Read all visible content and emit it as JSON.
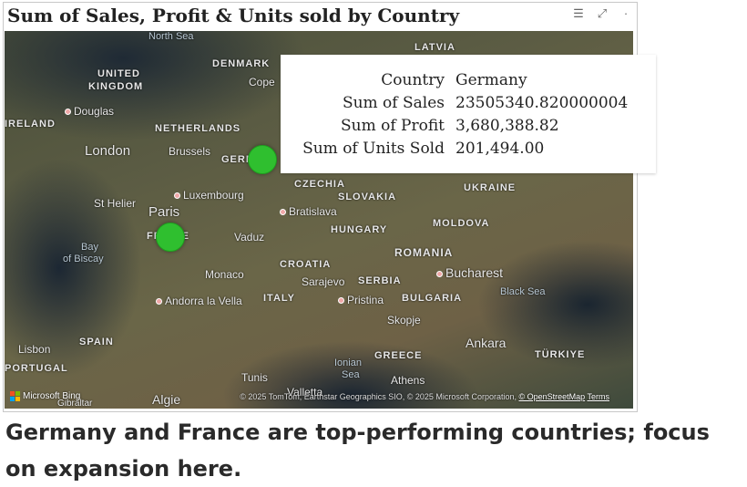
{
  "visual": {
    "title": "Sum of Sales, Profit & Units sold by Country",
    "header_icons": [
      "filter-icon",
      "focus-mode-icon",
      "more-options-icon"
    ]
  },
  "map": {
    "labels": {
      "north_sea": "North Sea",
      "latvia": "LATVIA",
      "denmark": "DENMARK",
      "copenhagen": "Cope",
      "united_kingdom_1": "UNITED",
      "united_kingdom_2": "KINGDOM",
      "douglas": "Douglas",
      "ireland": "IRELAND",
      "netherlands": "NETHERLANDS",
      "london": "London",
      "brussels": "Brussels",
      "germany_partial": "GERM",
      "luxembourg": "Luxembourg",
      "st_helier": "St Helier",
      "paris": "Paris",
      "france_partial": "FR NCE",
      "vaduz": "Vaduz",
      "bay_of_biscay_1": "Bay",
      "bay_of_biscay_2": "of Biscay",
      "monaco": "Monaco",
      "andorra": "Andorra la Vella",
      "italy": "ITALY",
      "spain": "SPAIN",
      "lisbon": "Lisbon",
      "portugal": "PORTUGAL",
      "tunis": "Tunis",
      "valletta": "Valletta",
      "algiers": "Algie",
      "gibraltar": "Gibraltar",
      "czechia": "CZECHIA",
      "slovakia": "SLOVAKIA",
      "bratislava": "Bratislava",
      "hungary": "HUNGARY",
      "ukraine": "UKRAINE",
      "moldova": "MOLDOVA",
      "romania": "ROMANIA",
      "croatia": "CROATIA",
      "sarajevo": "Sarajevo",
      "serbia": "SERBIA",
      "bucharest": "Bucharest",
      "black_sea": "Black Sea",
      "pristina": "Pristina",
      "bulgaria": "BULGARIA",
      "skopje": "Skopje",
      "greece": "GREECE",
      "ionian_sea_1": "Ionian",
      "ionian_sea_2": "Sea",
      "athens": "Athens",
      "ankara": "Ankara",
      "turkiye": "TÜRKIYE"
    },
    "attribution": {
      "bing": "Microsoft Bing",
      "copyright": "© 2025 TomTom, Earthstar Geographics SIO, © 2025 Microsoft Corporation,",
      "osm": "© OpenStreetMap",
      "terms": "Terms"
    }
  },
  "tooltip": {
    "rows": [
      {
        "key": "Country",
        "value": "Germany"
      },
      {
        "key": "Sum of Sales",
        "value": "23505340.820000004"
      },
      {
        "key": "Sum of Profit",
        "value": "3,680,388.82"
      },
      {
        "key": "Sum of Units Sold",
        "value": "201,494.00"
      }
    ]
  },
  "colors": {
    "bubble": "#2fbf2f",
    "tooltip_bg": "#ffffff"
  },
  "caption": "Germany and France are top-performing countries; focus on expansion here."
}
